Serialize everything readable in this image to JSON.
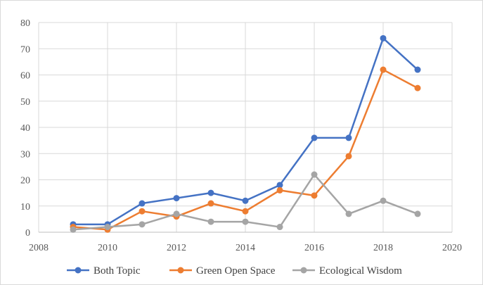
{
  "chart_data": {
    "type": "line",
    "title": "",
    "xlabel": "",
    "ylabel": "",
    "xlim": [
      2008,
      2020
    ],
    "ylim": [
      0,
      80
    ],
    "x_ticks": [
      "2008",
      "2010",
      "2012",
      "2014",
      "2016",
      "2018",
      "2020"
    ],
    "y_ticks": [
      "0",
      "10",
      "20",
      "30",
      "40",
      "50",
      "60",
      "70",
      "80"
    ],
    "grid": true,
    "legend_position": "bottom",
    "x": [
      2009,
      2010,
      2011,
      2012,
      2013,
      2014,
      2015,
      2016,
      2017,
      2018,
      2019
    ],
    "series": [
      {
        "name": "Both Topic",
        "color": "#4472c4",
        "values": [
          3,
          3,
          11,
          13,
          15,
          12,
          18,
          36,
          36,
          74,
          62
        ]
      },
      {
        "name": "Green Open Space",
        "color": "#ed7d31",
        "values": [
          2,
          1,
          8,
          6,
          11,
          8,
          16,
          14,
          29,
          62,
          55
        ]
      },
      {
        "name": "Ecological Wisdom",
        "color": "#a5a5a5",
        "values": [
          1,
          2,
          3,
          7,
          4,
          4,
          2,
          22,
          7,
          12,
          7
        ]
      }
    ]
  }
}
